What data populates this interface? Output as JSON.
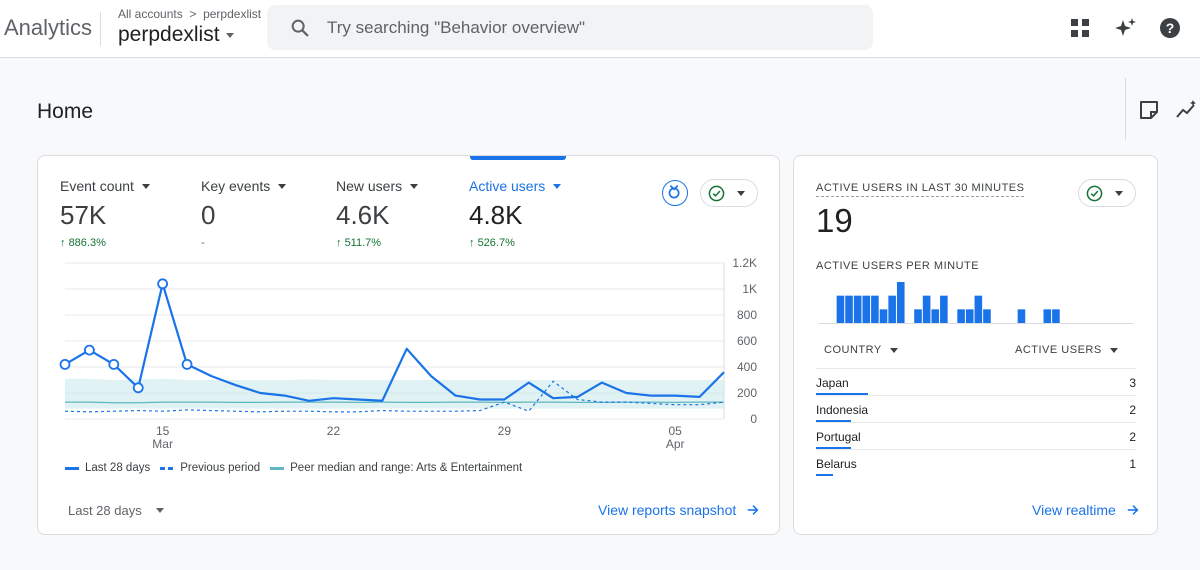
{
  "app": {
    "name": "Analytics"
  },
  "account": {
    "breadcrumb_all": "All accounts",
    "breadcrumb_property": "perpdexlist",
    "name": "perpdexlist"
  },
  "search": {
    "placeholder": "Try searching \"Behavior overview\""
  },
  "icons": {
    "search": "search-icon",
    "apps": "apps-grid-icon",
    "ai": "sparkle-icon",
    "help": "help-icon",
    "notes": "notes-icon",
    "insights": "insights-icon",
    "benchmark": "benchmark-icon",
    "check": "check-circle-icon",
    "arrow": "arrow-right-icon",
    "up": "arrow-up-icon"
  },
  "colors": {
    "accent": "#1a73e8",
    "positive": "#137333",
    "peer": "#c7e7ea",
    "peer_line": "#5fb7bf"
  },
  "page": {
    "title": "Home"
  },
  "metrics": [
    {
      "label": "Event count",
      "value": "57K",
      "change": "886.3%"
    },
    {
      "label": "Key events",
      "value": "0",
      "change": "-"
    },
    {
      "label": "New users",
      "value": "4.6K",
      "change": "511.7%"
    },
    {
      "label": "Active users",
      "value": "4.8K",
      "change": "526.7%"
    }
  ],
  "chart_data": {
    "type": "line",
    "title": "Active users",
    "ylim": [
      0,
      1200
    ],
    "yticks": [
      0,
      200,
      400,
      600,
      800,
      1000,
      1200
    ],
    "ytick_labels": [
      "0",
      "200",
      "400",
      "600",
      "800",
      "1K",
      "1.2K"
    ],
    "xticks": [
      {
        "day": 4,
        "label": "15",
        "sublabel": "Mar"
      },
      {
        "day": 11,
        "label": "22",
        "sublabel": ""
      },
      {
        "day": 18,
        "label": "29",
        "sublabel": ""
      },
      {
        "day": 25,
        "label": "05",
        "sublabel": "Apr"
      }
    ],
    "series": [
      {
        "name": "Last 28 days",
        "values": [
          420,
          530,
          420,
          240,
          1040,
          420,
          330,
          260,
          200,
          180,
          140,
          160,
          150,
          140,
          540,
          330,
          180,
          150,
          150,
          280,
          160,
          170,
          280,
          200,
          180,
          180,
          170,
          360
        ]
      },
      {
        "name": "Previous period",
        "values": [
          60,
          55,
          60,
          65,
          60,
          70,
          65,
          60,
          55,
          60,
          60,
          55,
          55,
          65,
          60,
          60,
          60,
          65,
          130,
          60,
          290,
          150,
          130,
          130,
          120,
          110,
          110,
          130
        ]
      },
      {
        "name": "Peer median",
        "values": [
          130,
          130,
          125,
          125,
          130,
          130,
          130,
          128,
          128,
          130,
          130,
          130,
          128,
          130,
          128,
          128,
          130,
          130,
          128,
          130,
          130,
          128,
          128,
          130,
          130,
          128,
          130,
          130
        ]
      },
      {
        "name": "Peer range high",
        "values": [
          310,
          310,
          300,
          305,
          310,
          300,
          300,
          300,
          300,
          300,
          305,
          300,
          300,
          300,
          300,
          300,
          300,
          300,
          300,
          300,
          300,
          300,
          300,
          300,
          300,
          300,
          300,
          300
        ]
      },
      {
        "name": "Peer range low",
        "values": [
          80,
          80,
          80,
          80,
          80,
          80,
          80,
          80,
          80,
          80,
          80,
          80,
          80,
          80,
          80,
          80,
          80,
          80,
          80,
          80,
          80,
          80,
          80,
          80,
          80,
          80,
          80,
          80
        ]
      }
    ],
    "markers_days": [
      0,
      1,
      2,
      3,
      4,
      5
    ],
    "legend": [
      "Last 28 days",
      "Previous period",
      "Peer median and range: Arts & Entertainment"
    ]
  },
  "range_label": "Last 28 days",
  "snapshot_link": "View reports snapshot",
  "realtime": {
    "title": "ACTIVE USERS IN LAST 30 MINUTES",
    "value": "19",
    "per_minute_title": "ACTIVE USERS PER MINUTE",
    "per_minute": [
      0,
      2,
      2,
      2,
      2,
      2,
      1,
      2,
      3,
      0,
      1,
      2,
      1,
      2,
      0,
      1,
      1,
      2,
      1,
      0,
      0,
      0,
      1,
      0,
      0,
      1,
      1,
      0,
      0,
      0
    ],
    "col_country": "COUNTRY",
    "col_users": "ACTIVE USERS",
    "rows": [
      {
        "country": "Japan",
        "users": "3",
        "fraction": 1.0
      },
      {
        "country": "Indonesia",
        "users": "2",
        "fraction": 0.67
      },
      {
        "country": "Portugal",
        "users": "2",
        "fraction": 0.67
      },
      {
        "country": "Belarus",
        "users": "1",
        "fraction": 0.33
      }
    ],
    "link": "View realtime"
  }
}
